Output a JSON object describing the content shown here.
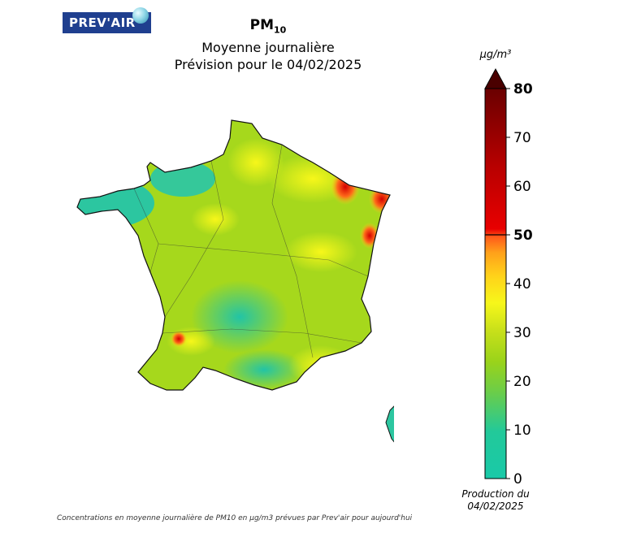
{
  "header": {
    "logo_text": "PREV'AIR",
    "pollutant": "PM",
    "pollutant_sub": "10",
    "subtitle": "Moyenne journalière",
    "forecast": "Prévision pour le 04/02/2025"
  },
  "colorbar": {
    "unit": "µg/m³",
    "ticks": [
      "0",
      "10",
      "20",
      "30",
      "40",
      "50",
      "60",
      "70",
      "80"
    ],
    "bold_ticks": [
      "50",
      "80"
    ],
    "min": 0,
    "max": 80,
    "colors": [
      "#19c9a8",
      "#3fcf8c",
      "#9ad31a",
      "#c8e01a",
      "#f7f71a",
      "#ffd21a",
      "#ffa01a",
      "#ff5a1a",
      "#e00000",
      "#b00000",
      "#6a0000"
    ]
  },
  "production": {
    "line1": "Production du",
    "line2": "04/02/2025"
  },
  "footer": {
    "caption": "Concentrations en moyenne journalière de PM10 en µg/m3 prévues par Prev'air pour aujourd'hui"
  }
}
